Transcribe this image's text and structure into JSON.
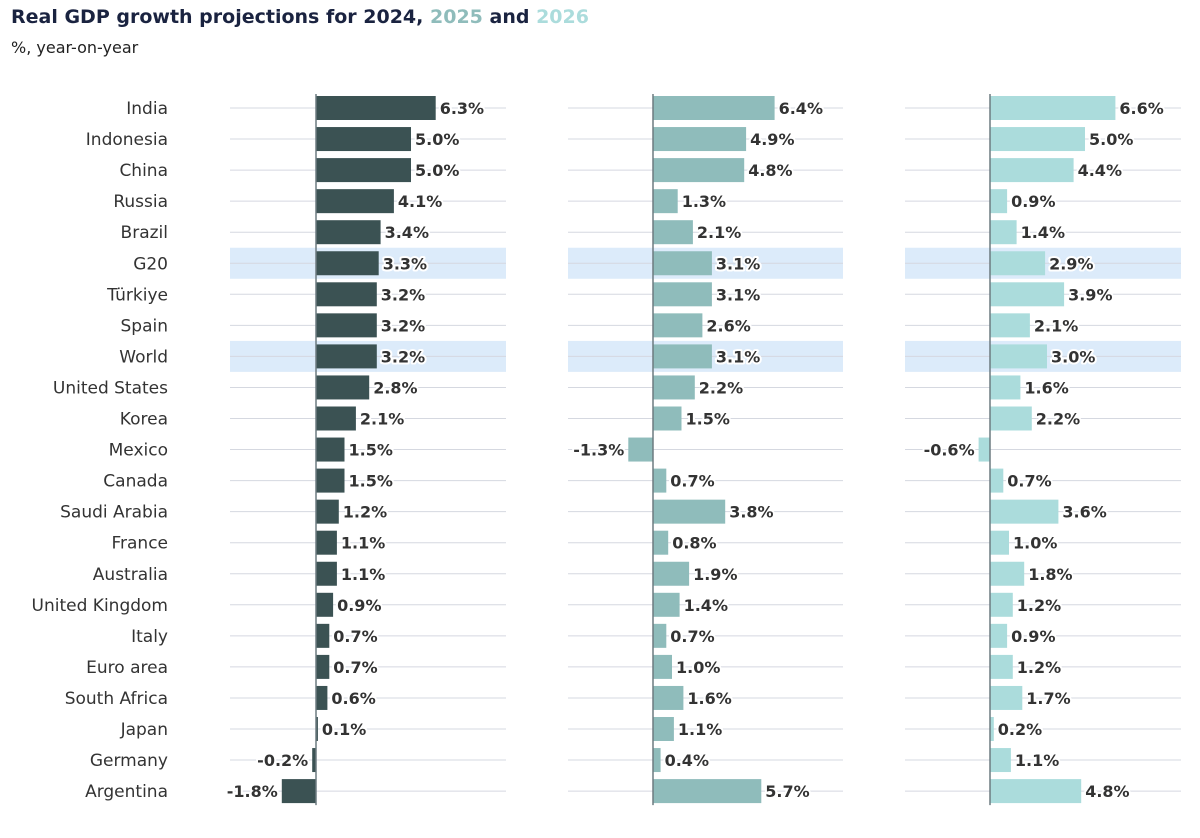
{
  "chart_data": {
    "type": "bar",
    "title_parts": [
      "Real GDP growth projections for ",
      "2024",
      ", ",
      "2025",
      " and ",
      "2026"
    ],
    "subtitle": "%, year-on-year",
    "categories": [
      "India",
      "Indonesia",
      "China",
      "Russia",
      "Brazil",
      "G20",
      "Türkiye",
      "Spain",
      "World",
      "United States",
      "Korea",
      "Mexico",
      "Canada",
      "Saudi Arabia",
      "France",
      "Australia",
      "United Kingdom",
      "Italy",
      "Euro area",
      "South Africa",
      "Japan",
      "Germany",
      "Argentina"
    ],
    "highlighted": [
      "G20",
      "World"
    ],
    "series": [
      {
        "name": "2024",
        "color": "#3b5253",
        "values": [
          6.3,
          5.0,
          5.0,
          4.1,
          3.4,
          3.3,
          3.2,
          3.2,
          3.2,
          2.8,
          2.1,
          1.5,
          1.5,
          1.2,
          1.1,
          1.1,
          0.9,
          0.7,
          0.7,
          0.6,
          0.1,
          -0.2,
          -1.8
        ]
      },
      {
        "name": "2025",
        "color": "#8fbcbb",
        "values": [
          6.4,
          4.9,
          4.8,
          1.3,
          2.1,
          3.1,
          3.1,
          2.6,
          3.1,
          2.2,
          1.5,
          -1.3,
          0.7,
          3.8,
          0.8,
          1.9,
          1.4,
          0.7,
          1.0,
          1.6,
          1.1,
          0.4,
          5.7
        ]
      },
      {
        "name": "2026",
        "color": "#abdcdc",
        "values": [
          6.6,
          5.0,
          4.4,
          0.9,
          1.4,
          2.9,
          3.9,
          2.1,
          3.0,
          1.6,
          2.2,
          -0.6,
          0.7,
          3.6,
          1.0,
          1.8,
          1.2,
          0.9,
          1.2,
          1.7,
          0.2,
          1.1,
          4.8
        ]
      }
    ],
    "value_suffix": "%",
    "highlight_color": "#dcebfa",
    "title_color": "#1a2340"
  }
}
